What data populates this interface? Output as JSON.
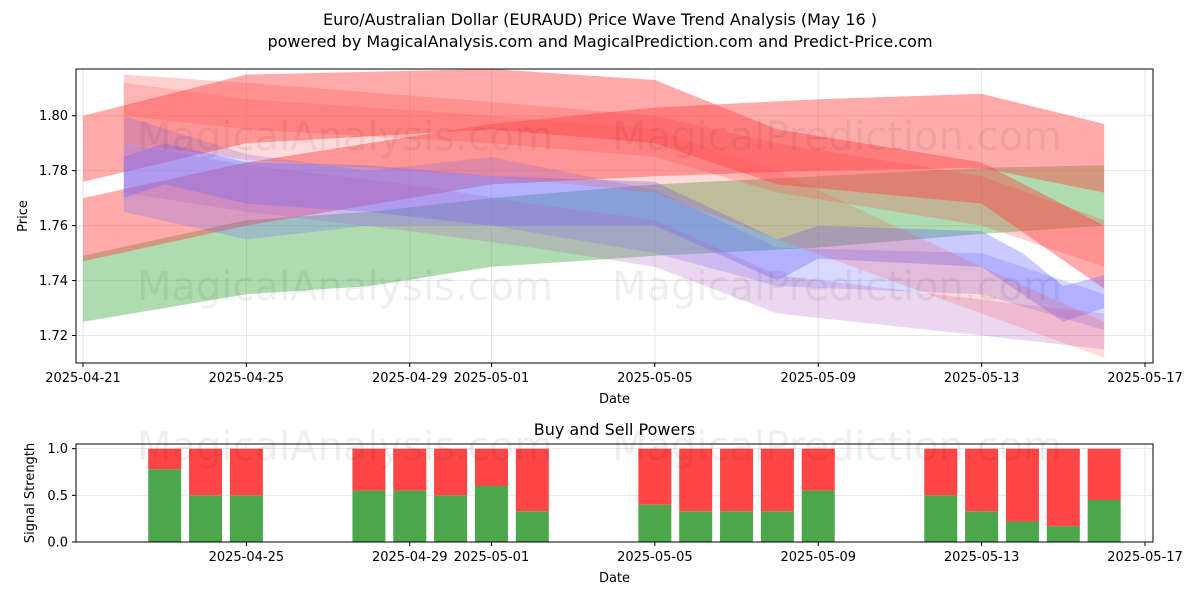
{
  "title_line1": "Euro/Australian Dollar (EURAUD) Price Wave Trend Analysis (May 16 )",
  "title_line2": "powered by MagicalAnalysis.com and MagicalPrediction.com and Predict-Price.com",
  "watermarks": [
    "MagicalAnalysis.com",
    "MagicalPrediction.com"
  ],
  "colors": {
    "green": "#4caf50",
    "red": "#ff4444",
    "blue": "#6666ff",
    "buy": "#4ca64c",
    "sell": "#ff4646"
  },
  "chart_data": [
    {
      "type": "area",
      "xlabel": "Date",
      "ylabel": "Price",
      "x_ticks": [
        "2025-04-21",
        "2025-04-25",
        "2025-04-29",
        "2025-05-01",
        "2025-05-05",
        "2025-05-09",
        "2025-05-13",
        "2025-05-17"
      ],
      "y_ticks": [
        1.72,
        1.74,
        1.76,
        1.78,
        1.8
      ],
      "xlim": [
        "2025-04-20",
        "2025-05-17"
      ],
      "ylim": [
        1.71,
        1.817
      ],
      "grid": true,
      "series": [
        {
          "color": "green",
          "opacity": 0.45,
          "x": [
            "2025-04-21",
            "2025-04-25",
            "2025-04-28",
            "2025-05-01",
            "2025-05-05",
            "2025-05-09",
            "2025-05-13",
            "2025-05-16"
          ],
          "upper": [
            1.749,
            1.762,
            1.765,
            1.77,
            1.775,
            1.778,
            1.781,
            1.782
          ],
          "lower": [
            1.725,
            1.735,
            1.738,
            1.745,
            1.749,
            1.752,
            1.757,
            1.76
          ]
        },
        {
          "color": "red",
          "opacity": 0.45,
          "x": [
            "2025-04-21",
            "2025-04-25",
            "2025-05-01",
            "2025-05-05",
            "2025-05-09",
            "2025-05-13",
            "2025-05-16"
          ],
          "upper": [
            1.77,
            1.783,
            1.797,
            1.803,
            1.806,
            1.808,
            1.797
          ],
          "lower": [
            1.747,
            1.76,
            1.775,
            1.778,
            1.78,
            1.781,
            1.772
          ]
        },
        {
          "color": "red",
          "opacity": 0.45,
          "x": [
            "2025-04-21",
            "2025-04-25",
            "2025-05-01",
            "2025-05-05",
            "2025-05-08",
            "2025-05-13",
            "2025-05-16"
          ],
          "upper": [
            1.8,
            1.815,
            1.817,
            1.813,
            1.795,
            1.783,
            1.76
          ],
          "lower": [
            1.776,
            1.79,
            1.795,
            1.79,
            1.775,
            1.768,
            1.737
          ]
        },
        {
          "color": "red",
          "opacity": 0.25,
          "x": [
            "2025-04-22",
            "2025-04-25",
            "2025-05-01",
            "2025-05-05",
            "2025-05-08",
            "2025-05-13",
            "2025-05-16"
          ],
          "upper": [
            1.815,
            1.812,
            1.805,
            1.8,
            1.79,
            1.778,
            1.762
          ],
          "lower": [
            1.8,
            1.795,
            1.79,
            1.785,
            1.772,
            1.76,
            1.745
          ]
        },
        {
          "color": "blue",
          "opacity": 0.35,
          "x": [
            "2025-04-22",
            "2025-04-23",
            "2025-04-25",
            "2025-04-28",
            "2025-05-01",
            "2025-05-05",
            "2025-05-08",
            "2025-05-09",
            "2025-05-13",
            "2025-05-14",
            "2025-05-15",
            "2025-05-16"
          ],
          "upper": [
            1.785,
            1.79,
            1.783,
            1.782,
            1.778,
            1.776,
            1.755,
            1.76,
            1.758,
            1.75,
            1.738,
            1.742
          ],
          "lower": [
            1.77,
            1.775,
            1.768,
            1.765,
            1.76,
            1.76,
            1.74,
            1.748,
            1.745,
            1.735,
            1.725,
            1.73
          ]
        },
        {
          "color": "blue",
          "opacity": 0.25,
          "x": [
            "2025-04-22",
            "2025-04-25",
            "2025-04-28",
            "2025-05-01",
            "2025-05-05",
            "2025-05-08",
            "2025-05-13",
            "2025-05-16"
          ],
          "upper": [
            1.8,
            1.786,
            1.78,
            1.785,
            1.773,
            1.752,
            1.75,
            1.735
          ],
          "lower": [
            1.765,
            1.755,
            1.76,
            1.76,
            1.75,
            1.738,
            1.735,
            1.722
          ]
        },
        {
          "color": "purple",
          "opacity": 0.25,
          "x": [
            "2025-04-22",
            "2025-04-25",
            "2025-04-29",
            "2025-05-02",
            "2025-05-05",
            "2025-05-08",
            "2025-05-13",
            "2025-05-16"
          ],
          "upper": [
            1.79,
            1.782,
            1.775,
            1.768,
            1.762,
            1.742,
            1.733,
            1.728
          ],
          "lower": [
            1.772,
            1.765,
            1.758,
            1.752,
            1.745,
            1.728,
            1.72,
            1.715
          ]
        },
        {
          "color": "red",
          "opacity": 0.2,
          "x": [
            "2025-04-22",
            "2025-04-25",
            "2025-05-01",
            "2025-05-05",
            "2025-05-08",
            "2025-05-13",
            "2025-05-16"
          ],
          "upper": [
            1.812,
            1.806,
            1.8,
            1.795,
            1.78,
            1.745,
            1.725
          ],
          "lower": [
            1.79,
            1.784,
            1.778,
            1.772,
            1.755,
            1.728,
            1.712
          ]
        }
      ]
    },
    {
      "type": "bar",
      "title": "Buy and Sell Powers",
      "xlabel": "Date",
      "ylabel": "Signal Strength",
      "x_ticks": [
        "2025-04-25",
        "2025-04-29",
        "2025-05-01",
        "2025-05-05",
        "2025-05-09",
        "2025-05-13",
        "2025-05-17"
      ],
      "y_ticks": [
        "0.0",
        "0.5",
        "1.0"
      ],
      "ylim": [
        0,
        1.05
      ],
      "stacked": true,
      "categories": [
        "2025-04-23",
        "2025-04-24",
        "2025-04-25",
        "2025-04-28",
        "2025-04-29",
        "2025-04-30",
        "2025-05-01",
        "2025-05-02",
        "2025-05-05",
        "2025-05-06",
        "2025-05-07",
        "2025-05-08",
        "2025-05-09",
        "2025-05-12",
        "2025-05-13",
        "2025-05-14",
        "2025-05-15",
        "2025-05-16"
      ],
      "series": [
        {
          "name": "Buy",
          "values": [
            0.78,
            0.5,
            0.5,
            0.55,
            0.55,
            0.5,
            0.6,
            0.33,
            0.4,
            0.33,
            0.33,
            0.33,
            0.55,
            0.5,
            0.33,
            0.22,
            0.17,
            0.45
          ]
        },
        {
          "name": "Sell",
          "values": [
            0.22,
            0.5,
            0.5,
            0.45,
            0.45,
            0.5,
            0.4,
            0.67,
            0.6,
            0.67,
            0.67,
            0.67,
            0.45,
            0.5,
            0.67,
            0.78,
            0.83,
            0.55
          ]
        }
      ]
    }
  ]
}
